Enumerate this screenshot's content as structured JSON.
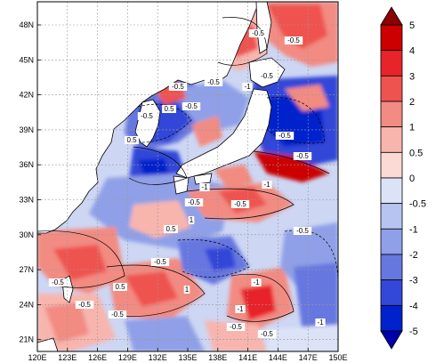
{
  "map": {
    "lon_labels": [
      "120E",
      "123E",
      "126E",
      "129E",
      "132E",
      "135E",
      "138E",
      "141E",
      "144E",
      "147E",
      "150E"
    ],
    "lat_labels": [
      "48N",
      "45N",
      "42N",
      "39N",
      "36N",
      "33N",
      "30N",
      "27N",
      "24N",
      "21N"
    ],
    "lon_range": [
      120,
      150
    ],
    "lat_range": [
      20,
      50
    ]
  },
  "colorbar": {
    "labels": [
      "5",
      "4",
      "3",
      "2",
      "1",
      "0.5",
      "0",
      "-0.5",
      "-1",
      "-2",
      "-3",
      "-4",
      "-5"
    ],
    "colors": [
      "#8b0000",
      "#cc0000",
      "#e8232a",
      "#ef5350",
      "#f28b82",
      "#f8b5ae",
      "#fbd9d4",
      "#dde3f7",
      "#b8c4f0",
      "#8fa0e8",
      "#6677e0",
      "#3347d8",
      "#0022cc",
      "#0000aa"
    ]
  },
  "contour_labels": [
    {
      "text": "-0.5"
    },
    {
      "text": "-0.5"
    },
    {
      "text": "-0.5"
    },
    {
      "text": "-0.5"
    },
    {
      "text": "-0.5"
    },
    {
      "text": "-1"
    },
    {
      "text": "0.5"
    },
    {
      "text": "-0.5"
    },
    {
      "text": "-0.5"
    },
    {
      "text": "-0.5"
    },
    {
      "text": "0.5"
    },
    {
      "text": "-0.5"
    },
    {
      "text": "-1"
    },
    {
      "text": "1"
    },
    {
      "text": "-1"
    },
    {
      "text": "0.5"
    },
    {
      "text": "-0.5"
    },
    {
      "text": "-1"
    },
    {
      "text": "-1"
    },
    {
      "text": "-0.5"
    },
    {
      "text": "-0.5"
    },
    {
      "text": "-0.5"
    },
    {
      "text": "1"
    },
    {
      "text": "0.5"
    },
    {
      "text": "-0.5"
    },
    {
      "text": "-0.5"
    },
    {
      "text": "-0.5"
    },
    {
      "text": "-1"
    },
    {
      "text": "-0.5"
    },
    {
      "text": "-0.5"
    }
  ]
}
